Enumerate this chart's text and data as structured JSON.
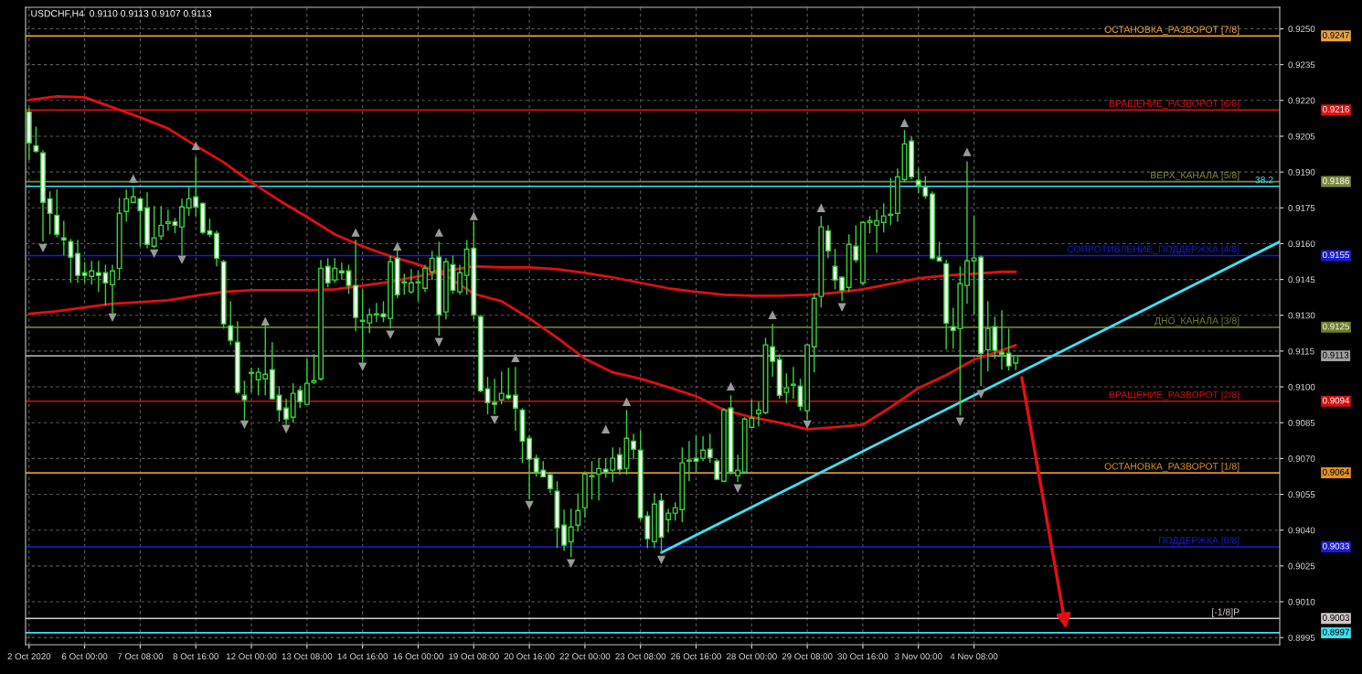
{
  "chart_data": {
    "type": "candlestick",
    "title": "USDCHF,H4  0.9110 0.9113 0.9107 0.9113",
    "categories": [
      "2 Oct 2020",
      null,
      null,
      null,
      null,
      null,
      null,
      null,
      "6 Oct 00:00",
      null,
      null,
      null,
      null,
      null,
      null,
      null,
      "7 Oct 08:00",
      null,
      null,
      null,
      null,
      null,
      null,
      null,
      "8 Oct 16:00",
      null,
      null,
      null,
      null,
      null,
      null,
      null,
      "12 Oct 00:00",
      null,
      null,
      null,
      null,
      null,
      null,
      null,
      "13 Oct 08:00",
      null,
      null,
      null,
      null,
      null,
      null,
      null,
      "14 Oct 16:00",
      null,
      null,
      null,
      null,
      null,
      null,
      null,
      "16 Oct 00:00",
      null,
      null,
      null,
      null,
      null,
      null,
      null,
      "19 Oct 08:00",
      null,
      null,
      null,
      null,
      null,
      null,
      null,
      "20 Oct 16:00",
      null,
      null,
      null,
      null,
      null,
      null,
      null,
      "22 Oct 00:00",
      null,
      null,
      null,
      null,
      null,
      null,
      null,
      "23 Oct 08:00",
      null,
      null,
      null,
      null,
      null,
      null,
      null,
      "26 Oct 16:00",
      null,
      null,
      null,
      null,
      null,
      null,
      null,
      "28 Oct 00:00",
      null,
      null,
      null,
      null,
      null,
      null,
      null,
      "29 Oct 08:00",
      null,
      null,
      null,
      null,
      null,
      null,
      null,
      "30 Oct 16:00",
      null,
      null,
      null,
      null,
      null,
      null,
      null,
      "3 Nov 00:00",
      null,
      null,
      null,
      null,
      null,
      null,
      null,
      "4 Nov 08:00",
      null,
      null,
      null,
      null,
      null,
      null,
      null,
      null,
      null,
      null,
      null,
      null,
      null,
      null,
      null,
      null,
      null,
      null,
      null,
      null,
      null,
      null,
      null,
      null,
      null,
      null,
      null,
      null,
      null,
      null,
      null,
      null,
      null,
      null,
      null,
      null,
      null,
      null,
      null,
      null,
      null,
      null,
      null,
      null
    ],
    "color": "#3ccf3c",
    "ohlc": [
      [
        0.92152,
        0.9217,
        0.9195,
        0.92022
      ],
      [
        0.9201,
        0.92091,
        0.9198,
        0.91987
      ],
      [
        0.9198,
        0.91991,
        0.91608,
        0.91773
      ],
      [
        0.91788,
        0.91819,
        0.91639,
        0.91727
      ],
      [
        0.91719,
        0.91827,
        0.91627,
        0.91639
      ],
      [
        0.91624,
        0.91696,
        0.91551,
        0.91616
      ],
      [
        0.91609,
        0.9162,
        0.91436,
        0.91543
      ],
      [
        0.91559,
        0.91616,
        0.91436,
        0.91467
      ],
      [
        0.91478,
        0.91524,
        0.91436,
        0.91467
      ],
      [
        0.91463,
        0.91528,
        0.91428,
        0.91486
      ],
      [
        0.91478,
        0.91528,
        0.91398,
        0.91467
      ],
      [
        0.91478,
        0.91512,
        0.9134,
        0.91436
      ],
      [
        0.91428,
        0.91512,
        0.91302,
        0.91486
      ],
      [
        0.91497,
        0.91792,
        0.91448,
        0.91727
      ],
      [
        0.91735,
        0.91827,
        0.91692,
        0.91788
      ],
      [
        0.91773,
        0.91838,
        0.91769,
        0.91796
      ],
      [
        0.91788,
        0.91792,
        0.91589,
        0.91738
      ],
      [
        0.9175,
        0.91815,
        0.91581,
        0.91597
      ],
      [
        0.91589,
        0.91758,
        0.91581,
        0.91624
      ],
      [
        0.91632,
        0.91758,
        0.91616,
        0.91677
      ],
      [
        0.91685,
        0.91742,
        0.91654,
        0.91692
      ],
      [
        0.91692,
        0.91708,
        0.91643,
        0.91677
      ],
      [
        0.9167,
        0.91788,
        0.91551,
        0.91754
      ],
      [
        0.9175,
        0.91838,
        0.91716,
        0.91788
      ],
      [
        0.91796,
        0.91964,
        0.91716,
        0.91754
      ],
      [
        0.91769,
        0.91773,
        0.91639,
        0.91647
      ],
      [
        0.91654,
        0.91704,
        0.91627,
        0.91639
      ],
      [
        0.91643,
        0.91654,
        0.91505,
        0.91539
      ],
      [
        0.91524,
        0.91532,
        0.91244,
        0.91264
      ],
      [
        0.91256,
        0.91359,
        0.91176,
        0.91195
      ],
      [
        0.91187,
        0.91275,
        0.90969,
        0.90977
      ],
      [
        0.90965,
        0.91026,
        0.90861,
        0.90946
      ],
      [
        0.91061,
        0.9108,
        0.90977,
        0.91057
      ],
      [
        0.9103,
        0.9108,
        0.90965,
        0.91061
      ],
      [
        0.91034,
        0.91264,
        0.90965,
        0.91053
      ],
      [
        0.91072,
        0.91187,
        0.90946,
        0.9095
      ],
      [
        0.90965,
        0.91003,
        0.90854,
        0.90903
      ],
      [
        0.90911,
        0.9095,
        0.90842,
        0.90865
      ],
      [
        0.90873,
        0.91015,
        0.9085,
        0.90973
      ],
      [
        0.90985,
        0.91003,
        0.90911,
        0.90938
      ],
      [
        0.90927,
        0.91118,
        0.90927,
        0.91015
      ],
      [
        0.91019,
        0.91137,
        0.91011,
        0.91026
      ],
      [
        0.91034,
        0.91532,
        0.91026,
        0.91497
      ],
      [
        0.91505,
        0.91539,
        0.91417,
        0.91436
      ],
      [
        0.91448,
        0.91539,
        0.91436,
        0.91497
      ],
      [
        0.91486,
        0.9152,
        0.91448,
        0.91478
      ],
      [
        0.91486,
        0.91512,
        0.9139,
        0.91425
      ],
      [
        0.91425,
        0.91616,
        0.91233,
        0.91291
      ],
      [
        0.91279,
        0.91409,
        0.91103,
        0.91275
      ],
      [
        0.91268,
        0.91329,
        0.91225,
        0.91302
      ],
      [
        0.91302,
        0.91352,
        0.91271,
        0.91306
      ],
      [
        0.91306,
        0.91359,
        0.91271,
        0.91294
      ],
      [
        0.91287,
        0.91551,
        0.91244,
        0.91524
      ],
      [
        0.91539,
        0.91581,
        0.91371,
        0.91386
      ],
      [
        0.9144,
        0.91474,
        0.91386,
        0.91436
      ],
      [
        0.91398,
        0.91493,
        0.9139,
        0.91436
      ],
      [
        0.91436,
        0.91486,
        0.91359,
        0.9144
      ],
      [
        0.91413,
        0.91512,
        0.91398,
        0.91497
      ],
      [
        0.91482,
        0.9157,
        0.91448,
        0.91539
      ],
      [
        0.91543,
        0.91608,
        0.91214,
        0.91302
      ],
      [
        0.91314,
        0.91539,
        0.91283,
        0.91524
      ],
      [
        0.91512,
        0.91551,
        0.9139,
        0.91405
      ],
      [
        0.91398,
        0.91512,
        0.91386,
        0.91478
      ],
      [
        0.91467,
        0.91616,
        0.91386,
        0.91577
      ],
      [
        0.91581,
        0.91692,
        0.91283,
        0.91302
      ],
      [
        0.91294,
        0.91302,
        0.90977,
        0.90984
      ],
      [
        0.90992,
        0.91042,
        0.90885,
        0.90934
      ],
      [
        0.90934,
        0.91034,
        0.90885,
        0.90927
      ],
      [
        0.90946,
        0.91065,
        0.90927,
        0.90973
      ],
      [
        0.90965,
        0.9108,
        0.90946,
        0.90954
      ],
      [
        0.90965,
        0.91084,
        0.90816,
        0.90911
      ],
      [
        0.90903,
        0.90911,
        0.90681,
        0.90773
      ],
      [
        0.90785,
        0.90796,
        0.90528,
        0.90697
      ],
      [
        0.90701,
        0.90716,
        0.90624,
        0.90643
      ],
      [
        0.90651,
        0.90689,
        0.9062,
        0.90624
      ],
      [
        0.90632,
        0.90643,
        0.90555,
        0.90574
      ],
      [
        0.90563,
        0.90605,
        0.90325,
        0.9041
      ],
      [
        0.90421,
        0.90486,
        0.90314,
        0.90337
      ],
      [
        0.90352,
        0.9049,
        0.90287,
        0.90413
      ],
      [
        0.90421,
        0.90555,
        0.90394,
        0.90482
      ],
      [
        0.90494,
        0.90643,
        0.90452,
        0.90635
      ],
      [
        0.90624,
        0.90689,
        0.90528,
        0.90628
      ],
      [
        0.90635,
        0.90701,
        0.90524,
        0.90658
      ],
      [
        0.90655,
        0.90701,
        0.9062,
        0.90643
      ],
      [
        0.90651,
        0.90746,
        0.90601,
        0.90701
      ],
      [
        0.90716,
        0.90746,
        0.90632,
        0.90655
      ],
      [
        0.90659,
        0.90903,
        0.90632,
        0.90785
      ],
      [
        0.90773,
        0.90804,
        0.90697,
        0.90739
      ],
      [
        0.90735,
        0.90816,
        0.9044,
        0.90452
      ],
      [
        0.90459,
        0.90478,
        0.90325,
        0.90364
      ],
      [
        0.90352,
        0.90555,
        0.90325,
        0.90509
      ],
      [
        0.90524,
        0.90555,
        0.90306,
        0.90371
      ],
      [
        0.90444,
        0.9049,
        0.9039,
        0.90471
      ],
      [
        0.90471,
        0.90517,
        0.9044,
        0.90494
      ],
      [
        0.90486,
        0.90746,
        0.90433,
        0.90682
      ],
      [
        0.90689,
        0.90773,
        0.90605,
        0.90693
      ],
      [
        0.90701,
        0.90796,
        0.90643,
        0.90689
      ],
      [
        0.90701,
        0.90793,
        0.90689,
        0.90735
      ],
      [
        0.90739,
        0.90804,
        0.90682,
        0.90704
      ],
      [
        0.90689,
        0.90697,
        0.90609,
        0.90613
      ],
      [
        0.90605,
        0.90911,
        0.90601,
        0.90903
      ],
      [
        0.90911,
        0.90965,
        0.90632,
        0.90643
      ],
      [
        0.90628,
        0.90716,
        0.90601,
        0.90651
      ],
      [
        0.90643,
        0.90873,
        0.9064,
        0.90865
      ],
      [
        0.90831,
        0.90946,
        0.90827,
        0.90869
      ],
      [
        0.90888,
        0.90938,
        0.90835,
        0.90903
      ],
      [
        0.90892,
        0.91206,
        0.90885,
        0.91176
      ],
      [
        0.91168,
        0.91264,
        0.91042,
        0.91107
      ],
      [
        0.91114,
        0.91137,
        0.9095,
        0.90965
      ],
      [
        0.90977,
        0.91057,
        0.90931,
        0.90996
      ],
      [
        0.91007,
        0.91084,
        0.9095,
        0.91011
      ],
      [
        0.91003,
        0.91034,
        0.909,
        0.90919
      ],
      [
        0.909,
        0.91179,
        0.90861,
        0.91176
      ],
      [
        0.91168,
        0.9139,
        0.91061,
        0.91371
      ],
      [
        0.91379,
        0.91716,
        0.91333,
        0.9167
      ],
      [
        0.91654,
        0.91677,
        0.91539,
        0.9157
      ],
      [
        0.91505,
        0.91578,
        0.91409,
        0.91448
      ],
      [
        0.91459,
        0.91463,
        0.91359,
        0.91405
      ],
      [
        0.91417,
        0.91639,
        0.91398,
        0.91597
      ],
      [
        0.91589,
        0.91677,
        0.9152,
        0.91532
      ],
      [
        0.91436,
        0.91692,
        0.91425,
        0.91689
      ],
      [
        0.91689,
        0.91716,
        0.91643,
        0.91696
      ],
      [
        0.91677,
        0.91742,
        0.91562,
        0.91696
      ],
      [
        0.91689,
        0.91769,
        0.91647,
        0.91716
      ],
      [
        0.91719,
        0.91876,
        0.91677,
        0.91723
      ],
      [
        0.91727,
        0.91915,
        0.91692,
        0.9188
      ],
      [
        0.91869,
        0.92076,
        0.91857,
        0.92018
      ],
      [
        0.9203,
        0.92049,
        0.91869,
        0.9188
      ],
      [
        0.91865,
        0.91915,
        0.91811,
        0.91846
      ],
      [
        0.91838,
        0.91884,
        0.91788,
        0.918
      ],
      [
        0.91808,
        0.91819,
        0.91532,
        0.91539
      ],
      [
        0.91543,
        0.91608,
        0.91524,
        0.91528
      ],
      [
        0.91516,
        0.91532,
        0.91156,
        0.91267
      ],
      [
        0.91252,
        0.91332,
        0.9116,
        0.91237
      ],
      [
        0.91244,
        0.91505,
        0.90881,
        0.91432
      ],
      [
        0.91425,
        0.91945,
        0.91348,
        0.91528
      ],
      [
        0.91528,
        0.91716,
        0.91302,
        0.9154
      ],
      [
        0.91543,
        0.91551,
        0.91003,
        0.91141
      ],
      [
        0.91156,
        0.91359,
        0.91065,
        0.91244
      ],
      [
        0.91252,
        0.91294,
        0.91118,
        0.91153
      ],
      [
        0.91145,
        0.91321,
        0.91072,
        0.91137
      ],
      [
        0.91141,
        0.91244,
        0.91069,
        0.91088
      ],
      [
        0.911,
        0.9113,
        0.9107,
        0.9113
      ],
      null,
      null,
      null,
      null,
      null,
      null,
      null,
      null,
      null,
      null,
      null,
      null,
      null,
      null,
      null,
      null,
      null,
      null,
      null,
      null,
      null,
      null,
      null,
      null,
      null,
      null,
      null,
      null,
      null,
      null,
      null,
      null,
      null,
      null,
      null,
      null,
      null,
      null
    ],
    "colors": [
      "#ffffff",
      "#ffffff",
      "#ffffff",
      "#ffffff",
      "#ffffff",
      "#ffffff",
      "#ffffff",
      "#ffffff",
      "#ffffff",
      "#000000",
      "#ffffff",
      "#ffffff",
      "#000000",
      "#000000",
      "#000000",
      "#000000",
      "#ffffff",
      "#ffffff",
      "#000000",
      "#000000",
      "#000000",
      "#ffffff",
      "#000000",
      "#000000",
      "#ffffff",
      "#ffffff",
      "#ffffff",
      "#ffffff",
      "#ffffff",
      "#ffffff",
      "#ffffff",
      "#ffffff",
      "#ffffff",
      "#000000",
      "#000000",
      "#ffffff",
      "#ffffff",
      "#ffffff",
      "#000000",
      "#ffffff",
      "#000000",
      "#000000",
      "#000000",
      "#ffffff",
      "#000000",
      "#ffffff",
      "#ffffff",
      "#ffffff",
      "#ffffff",
      "#000000",
      "#000000",
      "#ffffff",
      "#000000",
      "#ffffff",
      "#ffffff",
      "#000000",
      "#000000",
      "#000000",
      "#000000",
      "#ffffff",
      "#000000",
      "#ffffff",
      "#000000",
      "#000000",
      "#ffffff",
      "#ffffff",
      "#ffffff",
      "#ffffff",
      "#000000",
      "#ffffff",
      "#ffffff",
      "#ffffff",
      "#ffffff",
      "#ffffff",
      "#ffffff",
      "#ffffff",
      "#ffffff",
      "#ffffff",
      "#000000",
      "#000000",
      "#000000",
      "#000000",
      "#000000",
      "#ffffff",
      "#000000",
      "#ffffff",
      "#000000",
      "#ffffff",
      "#ffffff",
      "#ffffff",
      "#000000",
      "#ffffff",
      "#000000",
      "#000000",
      "#000000",
      "#000000",
      "#ffffff",
      "#000000",
      "#ffffff",
      "#ffffff",
      "#000000",
      "#ffffff",
      "#000000",
      "#000000",
      "#000000",
      "#000000",
      "#000000",
      "#ffffff",
      "#ffffff",
      "#000000",
      "#000000",
      "#ffffff",
      "#000000",
      "#000000",
      "#000000",
      "#ffffff",
      "#ffffff",
      "#ffffff",
      "#000000",
      "#ffffff",
      "#000000",
      "#000000",
      "#000000",
      "#000000",
      "#000000",
      "#000000",
      "#000000",
      "#ffffff",
      "#ffffff",
      "#ffffff",
      "#ffffff",
      "#ffffff",
      "#ffffff",
      "#ffffff",
      "#000000",
      "#000000",
      "#000000",
      "#ffffff",
      "#000000",
      "#ffffff",
      "#ffffff",
      "#ffffff",
      "#000000",
      null,
      null,
      null,
      null,
      null,
      null,
      null,
      null,
      null,
      null,
      null,
      null,
      null,
      null,
      null,
      null,
      null,
      null,
      null,
      null,
      null,
      null,
      null,
      null,
      null,
      null,
      null,
      null,
      null,
      null,
      null,
      null,
      null,
      null,
      null,
      null,
      null,
      null
    ],
    "series": [
      {
        "type": "line",
        "color": "#e01010",
        "line_style": "solid",
        "values": [
          0.91306,
          null,
          null,
          null,
          0.91317,
          null,
          null,
          null,
          0.91333,
          null,
          null,
          null,
          0.91348,
          null,
          null,
          null,
          0.91355,
          null,
          null,
          null,
          0.91363,
          null,
          null,
          null,
          0.91382,
          null,
          null,
          null,
          0.91398,
          null,
          null,
          null,
          0.91405,
          null,
          null,
          null,
          0.91405,
          null,
          null,
          null,
          0.91405,
          null,
          null,
          null,
          0.91409,
          null,
          null,
          null,
          0.91424,
          null,
          null,
          null,
          0.9144,
          null,
          null,
          null,
          0.91463,
          null,
          null,
          null,
          0.91486,
          null,
          null,
          null,
          0.91505,
          null,
          null,
          null,
          0.91501,
          null,
          null,
          null,
          0.91501,
          null,
          null,
          null,
          0.91493,
          null,
          null,
          null,
          0.91478,
          null,
          null,
          null,
          0.91459,
          null,
          null,
          null,
          0.91436,
          null,
          null,
          null,
          0.91413,
          null,
          null,
          null,
          0.91398,
          null,
          null,
          null,
          0.91386,
          null,
          null,
          null,
          0.91382,
          null,
          null,
          null,
          0.91382,
          null,
          null,
          null,
          0.91386,
          null,
          null,
          null,
          0.91394,
          null,
          null,
          null,
          0.91409,
          null,
          null,
          null,
          0.91432,
          null,
          null,
          null,
          0.91455,
          null,
          null,
          null,
          0.91467,
          null,
          null,
          null,
          0.91474,
          null,
          null,
          null,
          0.91482,
          null,
          0.91482,
          null,
          null,
          null,
          null,
          null,
          null,
          null,
          null,
          null,
          null,
          null,
          null,
          null,
          null,
          null,
          null,
          null,
          null,
          null,
          null,
          null,
          null,
          null,
          null,
          null,
          null,
          null,
          null,
          null,
          null,
          null,
          null,
          null,
          null,
          null,
          null,
          null,
          null
        ]
      },
      {
        "type": "line",
        "color": "#e01010",
        "line_style": "solid",
        "values": [
          0.92202,
          null,
          null,
          null,
          0.92217,
          null,
          null,
          null,
          0.92213,
          null,
          null,
          null,
          0.92171,
          null,
          null,
          null,
          0.92129,
          null,
          null,
          null,
          0.92083,
          null,
          null,
          null,
          0.9201,
          null,
          null,
          null,
          0.91941,
          null,
          null,
          null,
          0.91857,
          null,
          null,
          null,
          0.91781,
          null,
          null,
          null,
          0.91712,
          null,
          null,
          null,
          0.91639,
          null,
          null,
          null,
          0.91589,
          null,
          null,
          null,
          0.91547,
          null,
          null,
          null,
          0.91513,
          null,
          null,
          null,
          0.91467,
          null,
          null,
          null,
          0.9139,
          null,
          null,
          null,
          0.91359,
          null,
          null,
          null,
          0.91287,
          null,
          null,
          null,
          0.91206,
          null,
          null,
          null,
          0.91118,
          null,
          null,
          null,
          0.91061,
          null,
          null,
          null,
          0.91034,
          null,
          null,
          null,
          0.90999,
          null,
          null,
          null,
          0.90961,
          null,
          null,
          null,
          0.90904,
          null,
          null,
          null,
          0.90873,
          null,
          null,
          null,
          0.9085,
          null,
          null,
          null,
          0.90823,
          null,
          null,
          null,
          0.90831,
          null,
          null,
          null,
          0.90842,
          null,
          null,
          null,
          0.90915,
          null,
          null,
          null,
          0.90995,
          null,
          null,
          null,
          0.91049,
          null,
          null,
          null,
          0.91114,
          null,
          null,
          null,
          0.91153,
          null,
          0.91175,
          null,
          null,
          null,
          null,
          null,
          null,
          null,
          null,
          null,
          null,
          null,
          null,
          null,
          null,
          null,
          null,
          null,
          null,
          null,
          null,
          null,
          null,
          null,
          null,
          null,
          null,
          null,
          null,
          null,
          null,
          null,
          null,
          null,
          null,
          null,
          null,
          null,
          null
        ]
      },
      {
        "type": "line",
        "color": "#40e0f0",
        "line_style": "solid",
        "values": [
          null,
          null,
          null,
          null,
          null,
          null,
          null,
          null,
          null,
          null,
          null,
          null,
          null,
          null,
          null,
          null,
          null,
          null,
          null,
          null,
          null,
          null,
          null,
          null,
          null,
          null,
          null,
          null,
          null,
          null,
          null,
          null,
          null,
          null,
          null,
          null,
          null,
          null,
          null,
          null,
          null,
          null,
          null,
          null,
          null,
          null,
          null,
          null,
          null,
          null,
          null,
          null,
          null,
          null,
          null,
          null,
          null,
          null,
          null,
          null,
          null,
          null,
          null,
          null,
          null,
          null,
          null,
          null,
          null,
          null,
          null,
          null,
          null,
          null,
          null,
          null,
          null,
          null,
          null,
          null,
          null,
          null,
          null,
          null,
          null,
          null,
          null,
          null,
          null,
          null,
          null,
          0.90306,
          null,
          null,
          null,
          null,
          null,
          null,
          null,
          null,
          null,
          null,
          null,
          null,
          null,
          null,
          null,
          null,
          null,
          null,
          null,
          null,
          null,
          null,
          null,
          null,
          null,
          null,
          null,
          null,
          null,
          null,
          null,
          null,
          null,
          null,
          null,
          null,
          null,
          null,
          null,
          null,
          null,
          null,
          null,
          null,
          null,
          null,
          null,
          null,
          null,
          null,
          null,
          null,
          null,
          null,
          null,
          null,
          null,
          null,
          null,
          null,
          null,
          null,
          null,
          null,
          null,
          null,
          null,
          null,
          null,
          null,
          null,
          null,
          null,
          null,
          null,
          null,
          null,
          null,
          null,
          null,
          null,
          null,
          null,
          null,
          null,
          null,
          null,
          null,
          0.91608
        ]
      },
      {
        "type": "scatter",
        "color": "#9a9a9a",
        "marker": "triangle",
        "values": [
          null,
          null,
          null,
          null,
          null,
          null,
          null,
          null,
          null,
          null,
          null,
          null,
          null,
          null,
          null,
          0.91873,
          null,
          null,
          null,
          null,
          null,
          null,
          null,
          null,
          0.9201,
          null,
          null,
          null,
          null,
          null,
          null,
          null,
          null,
          null,
          0.91275,
          null,
          null,
          null,
          null,
          null,
          null,
          null,
          null,
          null,
          null,
          null,
          null,
          0.91647,
          null,
          null,
          null,
          null,
          null,
          0.91589,
          null,
          null,
          null,
          null,
          null,
          0.91647,
          null,
          null,
          null,
          null,
          0.91716,
          null,
          null,
          null,
          null,
          null,
          0.91122,
          null,
          null,
          null,
          null,
          null,
          null,
          null,
          null,
          null,
          null,
          null,
          null,
          0.90823,
          null,
          null,
          0.90938,
          null,
          null,
          null,
          null,
          null,
          null,
          null,
          null,
          null,
          null,
          null,
          null,
          null,
          null,
          0.91003,
          null,
          null,
          null,
          null,
          null,
          0.91302,
          null,
          null,
          null,
          null,
          null,
          null,
          0.9175,
          null,
          null,
          null,
          null,
          null,
          null,
          null,
          null,
          null,
          null,
          null,
          0.92106,
          null,
          null,
          null,
          null,
          null,
          null,
          null,
          null,
          0.91984,
          null,
          null,
          null,
          null,
          null,
          null,
          null,
          null,
          null,
          null,
          null,
          null,
          null,
          null,
          null,
          null,
          null,
          null,
          null,
          null,
          null,
          null,
          null,
          null,
          null,
          null,
          null,
          null,
          null,
          null,
          null,
          null,
          null,
          null,
          null,
          null,
          null,
          null,
          null,
          null,
          null,
          null,
          null,
          null,
          null
        ]
      },
      {
        "type": "scatter",
        "color": "#9a9a9a",
        "marker": "triangle-down",
        "values": [
          null,
          null,
          0.91581,
          null,
          null,
          null,
          null,
          null,
          null,
          null,
          null,
          null,
          0.9129,
          null,
          null,
          null,
          null,
          null,
          0.91558,
          null,
          null,
          null,
          0.91532,
          null,
          null,
          null,
          null,
          null,
          null,
          null,
          null,
          0.90842,
          null,
          null,
          null,
          null,
          null,
          0.90823,
          null,
          null,
          null,
          null,
          null,
          null,
          null,
          null,
          null,
          null,
          0.91084,
          null,
          null,
          null,
          0.91218,
          null,
          null,
          null,
          null,
          null,
          null,
          0.91187,
          null,
          null,
          null,
          null,
          null,
          null,
          null,
          0.90861,
          null,
          null,
          null,
          null,
          0.90505,
          null,
          null,
          null,
          null,
          null,
          0.9026,
          null,
          null,
          null,
          null,
          null,
          null,
          null,
          null,
          null,
          null,
          null,
          null,
          0.90275,
          null,
          null,
          null,
          null,
          null,
          null,
          null,
          null,
          null,
          null,
          0.90574,
          null,
          null,
          null,
          null,
          null,
          null,
          null,
          null,
          null,
          0.90842,
          null,
          null,
          null,
          null,
          0.91333,
          null,
          null,
          null,
          null,
          null,
          null,
          null,
          null,
          null,
          null,
          null,
          null,
          null,
          null,
          null,
          null,
          0.90854,
          null,
          null,
          0.90969,
          null,
          null,
          null,
          null,
          null,
          null,
          null,
          null,
          null,
          null,
          null,
          null,
          null,
          null,
          null,
          null,
          null,
          null,
          null,
          null,
          null,
          null,
          null,
          null,
          null,
          null,
          null,
          null,
          null,
          null,
          null,
          null,
          null,
          null,
          null,
          null,
          null,
          null,
          null,
          null,
          null,
          null,
          null
        ]
      }
    ],
    "ref_lines": [
      {
        "axis": "y",
        "value": 0.9247,
        "label": "ОСТАНОВКА_РАЗВОРОТ [7/8]",
        "color": "#e8a33d"
      },
      {
        "axis": "y",
        "value": 0.9216,
        "label": "ВРАЩЕНИЕ_РАЗВОРОТ [6/8]",
        "color": "#e01010"
      },
      {
        "axis": "y",
        "value": 0.9186,
        "label": "ВЕРХ_КАНАЛА [5/8]",
        "color": "#7a8a3a"
      },
      {
        "axis": "y",
        "value": 0.9184,
        "label": null,
        "color": "#40e0f0"
      },
      {
        "axis": "y",
        "value": 0.9155,
        "label": "СОПРОТИВЛЕНИЕ_ПОДДЕРЖКА [4/8]",
        "color": "#1a1ad0"
      },
      {
        "axis": "y",
        "value": 0.9125,
        "label": "ДНО_КАНАЛА [3/8]",
        "color": "#6b7d2a"
      },
      {
        "axis": "y",
        "value": 0.9113,
        "label": null,
        "color": "#a0a0a0"
      },
      {
        "axis": "y",
        "value": 0.9094,
        "label": "ВРАЩЕНИЕ_РАЗВОРОТ [2/8]",
        "color": "#d01010"
      },
      {
        "axis": "y",
        "value": 0.9064,
        "label": "ОСТАНОВКА_РАЗВОРОТ [1/8]",
        "color": "#e0902a"
      },
      {
        "axis": "y",
        "value": 0.9033,
        "label": "ПОДДЕРЖКА [0/8]",
        "color": "#1a1ad0"
      },
      {
        "axis": "y",
        "value": 0.9003,
        "label": "[-1/8]P",
        "color": "#d0c8c8"
      },
      {
        "axis": "y",
        "value": 0.8997,
        "label": null,
        "color": "#40e0f0"
      }
    ],
    "annotations": [
      {
        "text": "38.2",
        "y": 0.9184
      },
      "0.9247",
      "0.9216",
      "0.9186",
      "0.9155",
      "0.9125",
      "0.9113",
      "0.9094",
      "0.9064",
      "0.9033",
      "0.9003",
      "0.8997"
    ],
    "ylim": [
      0.8992,
      0.9259
    ],
    "yticks": [
      {
        "value": 0.8995,
        "label": "0.8995"
      },
      {
        "value": 0.901,
        "label": "0.9010"
      },
      {
        "value": 0.9025,
        "label": "0.9025"
      },
      {
        "value": 0.904,
        "label": "0.9040"
      },
      {
        "value": 0.9055,
        "label": "0.9055"
      },
      {
        "value": 0.907,
        "label": "0.9070"
      },
      {
        "value": 0.9085,
        "label": "0.9085"
      },
      {
        "value": 0.91,
        "label": "0.9100"
      },
      {
        "value": 0.9115,
        "label": "0.9115"
      },
      {
        "value": 0.913,
        "label": "0.9130"
      },
      {
        "value": 0.9145,
        "label": "0.9145"
      },
      {
        "value": 0.916,
        "label": "0.9160"
      },
      {
        "value": 0.9175,
        "label": "0.9175"
      },
      {
        "value": 0.919,
        "label": "0.9190"
      },
      {
        "value": 0.9205,
        "label": "0.9205"
      },
      {
        "value": 0.922,
        "label": "0.9220"
      },
      {
        "value": 0.9235,
        "label": "0.9235"
      },
      {
        "value": 0.925,
        "label": "0.9250"
      }
    ],
    "grid": true,
    "legend": false
  }
}
